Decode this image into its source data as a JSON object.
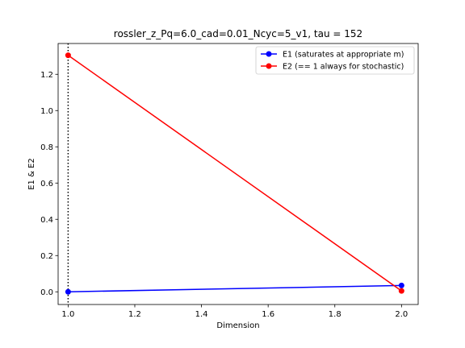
{
  "chart_data": {
    "type": "line",
    "title": "rossler_z_Pq=6.0_cad=0.01_Ncyc=5_v1, tau = 152",
    "xlabel": "Dimension",
    "ylabel": "E1 & E2",
    "xlim": [
      0.97,
      2.05
    ],
    "ylim": [
      -0.07,
      1.37
    ],
    "xticks": [
      1.0,
      1.2,
      1.4,
      1.6,
      1.8,
      2.0
    ],
    "xtick_labels": [
      "1.0",
      "1.2",
      "1.4",
      "1.6",
      "1.8",
      "2.0"
    ],
    "yticks": [
      0.0,
      0.2,
      0.4,
      0.6,
      0.8,
      1.0,
      1.2
    ],
    "ytick_labels": [
      "0.0",
      "0.2",
      "0.4",
      "0.6",
      "0.8",
      "1.0",
      "1.2"
    ],
    "grid": false,
    "legend_position": "top-right",
    "vline": {
      "x": 1.0,
      "style": "dotted",
      "color": "#000000"
    },
    "series": [
      {
        "name": "E1 (saturates at appropriate m)",
        "color": "#0000ff",
        "x": [
          1,
          2
        ],
        "values": [
          0.0,
          0.035
        ]
      },
      {
        "name": "E2 (== 1 always for stochastic)",
        "color": "#ff0000",
        "x": [
          1,
          2
        ],
        "values": [
          1.305,
          0.005
        ]
      }
    ]
  }
}
